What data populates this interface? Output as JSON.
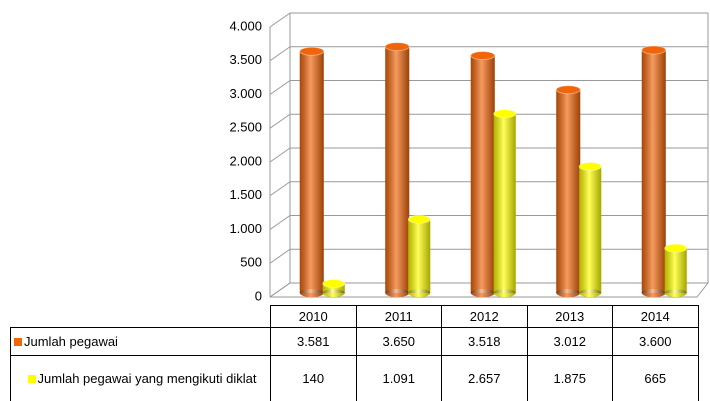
{
  "chart_data": {
    "type": "bar3d",
    "categories": [
      "2010",
      "2011",
      "2012",
      "2013",
      "2014"
    ],
    "series": [
      {
        "name": "Jumlah pegawai",
        "color": "#f0650a",
        "values": [
          3581,
          3650,
          3518,
          3012,
          3600
        ],
        "value_labels": [
          "3.581",
          "3.650",
          "3.518",
          "3.012",
          "3.600"
        ]
      },
      {
        "name": "Jumlah pegawai yang mengikuti diklat",
        "color": "#ffff00",
        "values": [
          140,
          1091,
          2657,
          1875,
          665
        ],
        "value_labels": [
          "140",
          "1.091",
          "2.657",
          "1.875",
          "665"
        ]
      }
    ],
    "ylim": [
      0,
      4000
    ],
    "yticks": [
      0,
      500,
      {
        "value": 1000,
        "label": "1.000"
      },
      {
        "value": 1500,
        "label": "1.500"
      },
      {
        "value": 2000,
        "label": "2.000"
      },
      {
        "value": 2500,
        "label": "2.500"
      },
      {
        "value": 3000,
        "label": "3.000"
      },
      {
        "value": 3500,
        "label": "3.500"
      },
      {
        "value": 4000,
        "label": "4.000"
      }
    ],
    "grid": true
  }
}
